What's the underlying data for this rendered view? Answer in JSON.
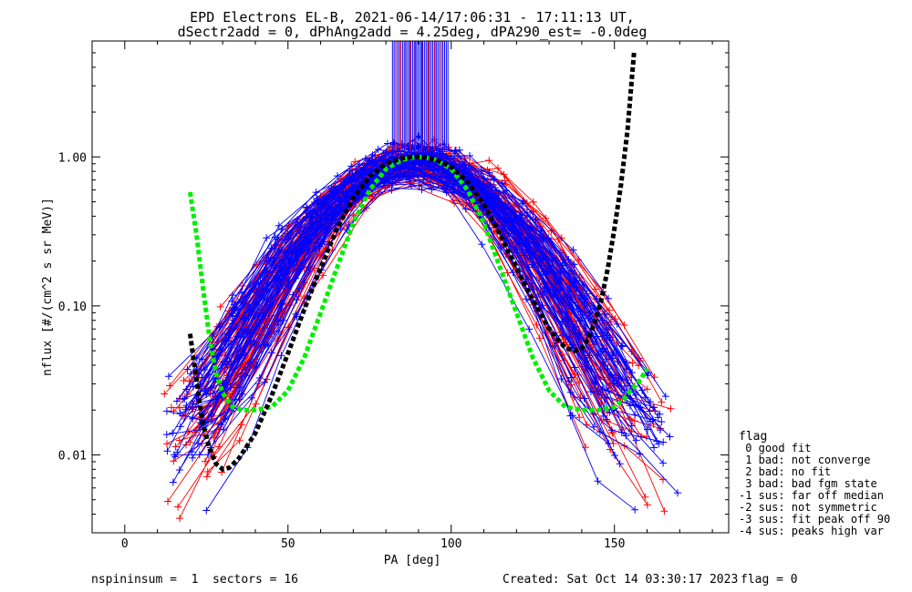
{
  "chart_data": {
    "type": "line",
    "title_line1": "EPD Electrons EL-B, 2021-06-14/17:06:31 - 17:11:13 UT,",
    "title_line2": "dSectr2add = 0, dPhAng2add = 4.25deg, dPA290_est=  -0.0deg",
    "xlabel": "PA [deg]",
    "ylabel": "nflux [#/(cm^2 s sr MeV)]",
    "xlim": [
      -10,
      185
    ],
    "ylim": [
      0.003,
      6
    ],
    "yscale": "log",
    "xticks": [
      0,
      50,
      100,
      150
    ],
    "xtick_labels": [
      "0",
      "50",
      "100",
      "150"
    ],
    "yticks": [
      0.01,
      0.1,
      1.0
    ],
    "ytick_labels": [
      "0.01",
      "0.10",
      "1.00"
    ],
    "colors": {
      "red": "#ff0000",
      "blue": "#0000ff",
      "green": "#00ee00",
      "black": "#000000"
    },
    "fits": [
      {
        "name": "green-fit",
        "color": "#00ee00",
        "x": [
          20,
          22,
          24,
          26,
          28,
          30,
          33,
          36,
          40,
          45,
          50,
          55,
          60,
          65,
          70,
          75,
          80,
          85,
          88,
          90,
          92,
          95,
          100,
          105,
          110,
          115,
          120,
          125,
          130,
          135,
          140,
          145,
          150,
          153,
          155,
          158,
          160
        ],
        "y": [
          0.58,
          0.3,
          0.13,
          0.06,
          0.035,
          0.026,
          0.021,
          0.02,
          0.02,
          0.021,
          0.027,
          0.045,
          0.09,
          0.18,
          0.36,
          0.6,
          0.83,
          0.96,
          0.99,
          1.0,
          0.99,
          0.96,
          0.83,
          0.6,
          0.36,
          0.18,
          0.09,
          0.045,
          0.027,
          0.021,
          0.02,
          0.02,
          0.021,
          0.024,
          0.027,
          0.032,
          0.038
        ]
      },
      {
        "name": "black-fit",
        "color": "#000000",
        "x": [
          20,
          21,
          22,
          23,
          24,
          26,
          28,
          30,
          32,
          35,
          40,
          45,
          50,
          55,
          60,
          65,
          70,
          75,
          80,
          85,
          88,
          90,
          92,
          95,
          100,
          105,
          110,
          115,
          120,
          125,
          130,
          135,
          138,
          140,
          142,
          144,
          146,
          148,
          150,
          152,
          154,
          156
        ],
        "y": [
          0.065,
          0.045,
          0.032,
          0.022,
          0.016,
          0.011,
          0.0087,
          0.008,
          0.0082,
          0.0095,
          0.014,
          0.025,
          0.048,
          0.095,
          0.18,
          0.33,
          0.53,
          0.74,
          0.9,
          0.98,
          1.0,
          1.0,
          0.99,
          0.96,
          0.86,
          0.68,
          0.48,
          0.3,
          0.18,
          0.11,
          0.07,
          0.052,
          0.05,
          0.052,
          0.06,
          0.078,
          0.11,
          0.18,
          0.33,
          0.65,
          1.5,
          5.0
        ]
      }
    ],
    "spike_lines": {
      "x_from": 82,
      "x_to": 99,
      "y_bottom": 1.1,
      "y_top": 6,
      "red_x": [
        83,
        84.5,
        86,
        87.5,
        89,
        91,
        93,
        95,
        97
      ],
      "blue_count": 34
    },
    "scatter_series": [
      {
        "name": "red",
        "color": "#ff0000",
        "count": 70
      },
      {
        "name": "blue",
        "color": "#0000ff",
        "count": 70
      }
    ]
  },
  "legend": {
    "title": "flag",
    "items": [
      " 0 good fit",
      " 1 bad: not converge",
      " 2 bad: no fit",
      " 3 bad: bad fgm state",
      "-1 sus: far off median",
      "-2 sus: not symmetric",
      "-3 sus: fit peak off 90",
      "-4 sus: peaks high var"
    ]
  },
  "footer": {
    "left": "nspininsum =  1  sectors = 16",
    "created": "Created: Sat Oct 14 03:30:17 2023",
    "flag": "flag = 0"
  }
}
